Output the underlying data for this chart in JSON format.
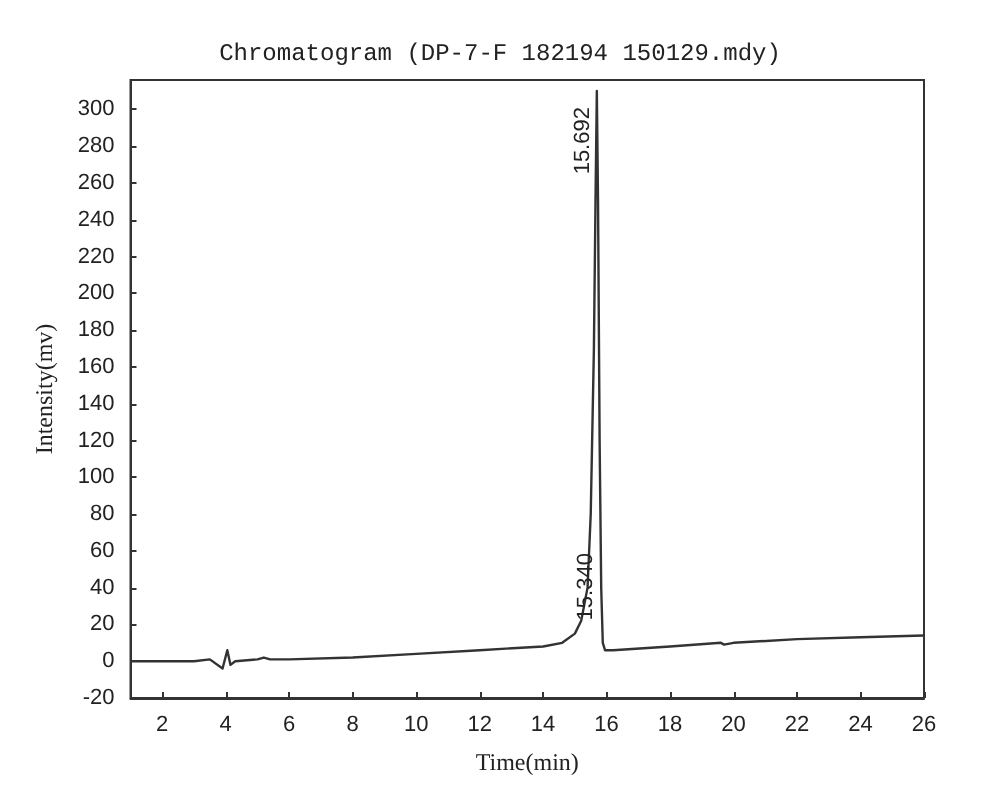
{
  "chart_data": {
    "type": "line",
    "title": "Chromatogram (DP-7-F 182194 150129.mdy)",
    "xlabel": "Time(min)",
    "ylabel": "Intensity(mv)",
    "x": [
      1,
      2,
      3,
      3.5,
      3.9,
      4.05,
      4.15,
      4.3,
      5,
      5.2,
      5.4,
      6,
      8,
      10,
      12,
      14,
      14.6,
      15.0,
      15.2,
      15.4,
      15.5,
      15.6,
      15.65,
      15.692,
      15.73,
      15.78,
      15.83,
      15.88,
      15.95,
      16.2,
      18,
      19.6,
      19.7,
      20,
      22,
      24,
      26
    ],
    "series": [
      {
        "color": "#333333",
        "values": [
          0,
          0,
          0,
          1,
          -4,
          6,
          -2,
          0,
          1,
          2,
          1,
          1,
          2,
          4,
          6,
          8,
          10,
          15,
          22,
          40,
          80,
          170,
          250,
          310,
          250,
          120,
          40,
          10,
          6,
          6,
          8,
          10,
          9,
          10,
          12,
          13,
          14
        ]
      }
    ],
    "xlim": [
      1,
      26
    ],
    "xticks": [
      2,
      4,
      6,
      8,
      10,
      12,
      14,
      16,
      18,
      20,
      22,
      24,
      26
    ],
    "ylim": [
      -20,
      316
    ],
    "yticks": [
      -20,
      0,
      20,
      40,
      60,
      80,
      100,
      120,
      140,
      160,
      180,
      200,
      220,
      240,
      260,
      280,
      300
    ],
    "annotations": [
      {
        "text": "15.692",
        "x": 15.692,
        "y": 310
      },
      {
        "text": "15.340",
        "x": 15.34,
        "y": 20
      }
    ],
    "grid": false,
    "marker": "none",
    "line_style": "solid"
  }
}
